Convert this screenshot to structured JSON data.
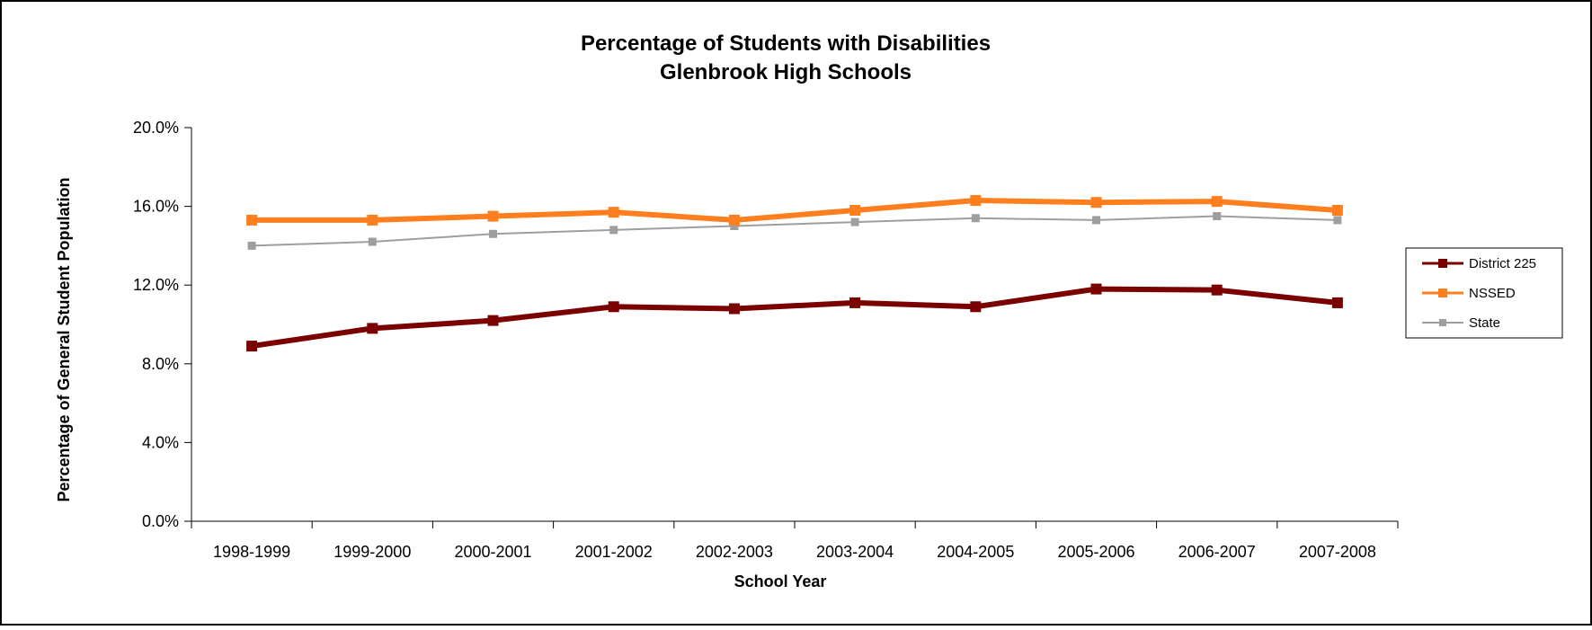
{
  "chart_data": {
    "type": "line",
    "title": "Percentage of Students with Disabilities",
    "subtitle": "Glenbrook High Schools",
    "xlabel": "School Year",
    "ylabel": "Percentage of General Student Population",
    "ylim": [
      0,
      0.2
    ],
    "yticks": [
      0,
      0.04,
      0.08,
      0.12,
      0.16,
      0.2
    ],
    "ytick_labels": [
      "0.0%",
      "4.0%",
      "8.0%",
      "12.0%",
      "16.0%",
      "20.0%"
    ],
    "grid": false,
    "legend_position": "right",
    "categories": [
      "1998-1999",
      "1999-2000",
      "2000-2001",
      "2001-2002",
      "2002-2003",
      "2003-2004",
      "2004-2005",
      "2005-2006",
      "2006-2007",
      "2007-2008"
    ],
    "series": [
      {
        "name": "District 225",
        "color": "#7b0000",
        "values": [
          0.089,
          0.098,
          0.102,
          0.109,
          0.108,
          0.111,
          0.109,
          0.118,
          0.1175,
          0.111
        ]
      },
      {
        "name": "NSSED",
        "color": "#ff7f1f",
        "values": [
          0.153,
          0.153,
          0.155,
          0.157,
          0.153,
          0.158,
          0.163,
          0.162,
          0.1625,
          0.158
        ]
      },
      {
        "name": "State",
        "color": "#9e9e9e",
        "values": [
          0.14,
          0.142,
          0.146,
          0.148,
          0.15,
          0.152,
          0.154,
          0.153,
          0.155,
          0.153
        ]
      }
    ]
  }
}
